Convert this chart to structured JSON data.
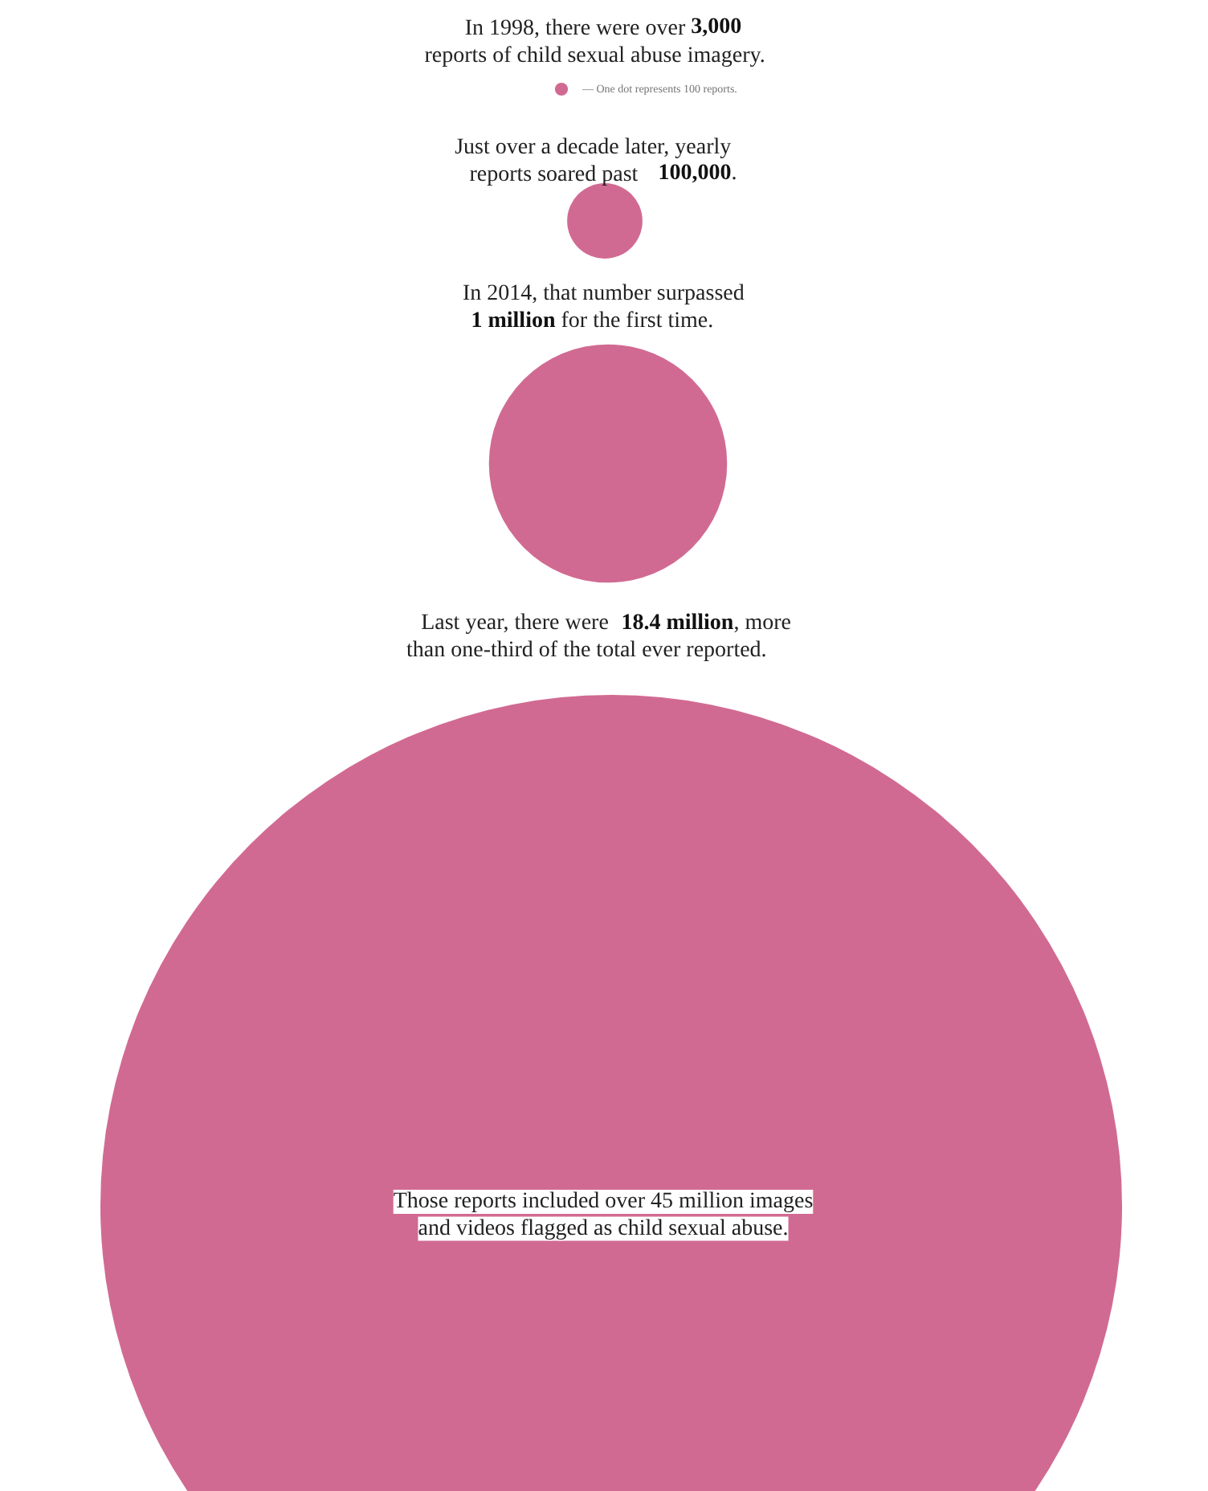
{
  "chart_data": {
    "type": "other",
    "color": "#c9507f",
    "values": [
      3000,
      100000,
      1000000,
      18400000
    ],
    "value_labels": [
      "3,000",
      "100,000",
      "1 million",
      "18.4 million"
    ],
    "annotations": [
      "In 1998, there were over",
      "reports of child sexual abuse imagery.",
      "— One dot represents 100 reports.",
      "Just over a decade later, yearly",
      "reports soared past",
      ".",
      "In 2014, that number surpassed",
      "for the first time.",
      "Last year, there were",
      ", more",
      "than one-third of the total ever reported.",
      "Those reports included over 45 million images\nand videos flagged as child sexual abuse."
    ]
  }
}
